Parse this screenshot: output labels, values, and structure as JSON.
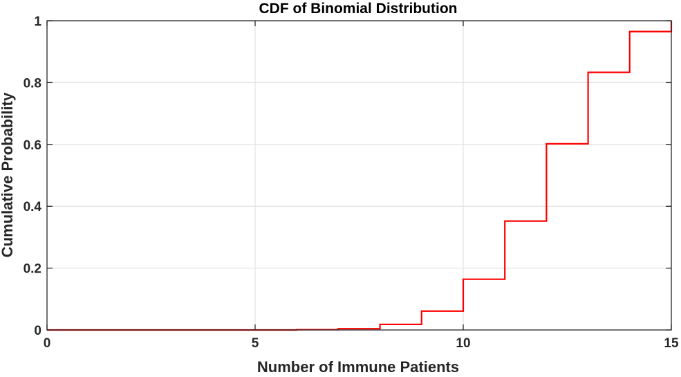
{
  "chart_data": {
    "type": "line",
    "step": "post",
    "title": "CDF of Binomial Distribution",
    "xlabel": "Number of Immune Patients",
    "ylabel": "Cumulative Probability",
    "xlim": [
      0,
      15
    ],
    "ylim": [
      0,
      1
    ],
    "grid": true,
    "x_ticks": [
      0,
      5,
      10,
      15
    ],
    "x_tick_labels": [
      "0",
      "5",
      "10",
      "15"
    ],
    "y_ticks": [
      0,
      0.2,
      0.4,
      0.6,
      0.8,
      1
    ],
    "y_tick_labels": [
      "0",
      "0.2",
      "0.4",
      "0.6",
      "0.8",
      "1"
    ],
    "series": [
      {
        "color": "#ff0000",
        "x": [
          0,
          1,
          2,
          3,
          4,
          5,
          6,
          7,
          8,
          9,
          10,
          11,
          12,
          13,
          14,
          15
        ],
        "values": [
          0.0,
          0.0,
          0.0,
          0.0,
          0.0,
          0.0,
          0.001,
          0.004,
          0.018,
          0.061,
          0.164,
          0.352,
          0.602,
          0.833,
          0.965,
          1.0
        ]
      }
    ]
  }
}
